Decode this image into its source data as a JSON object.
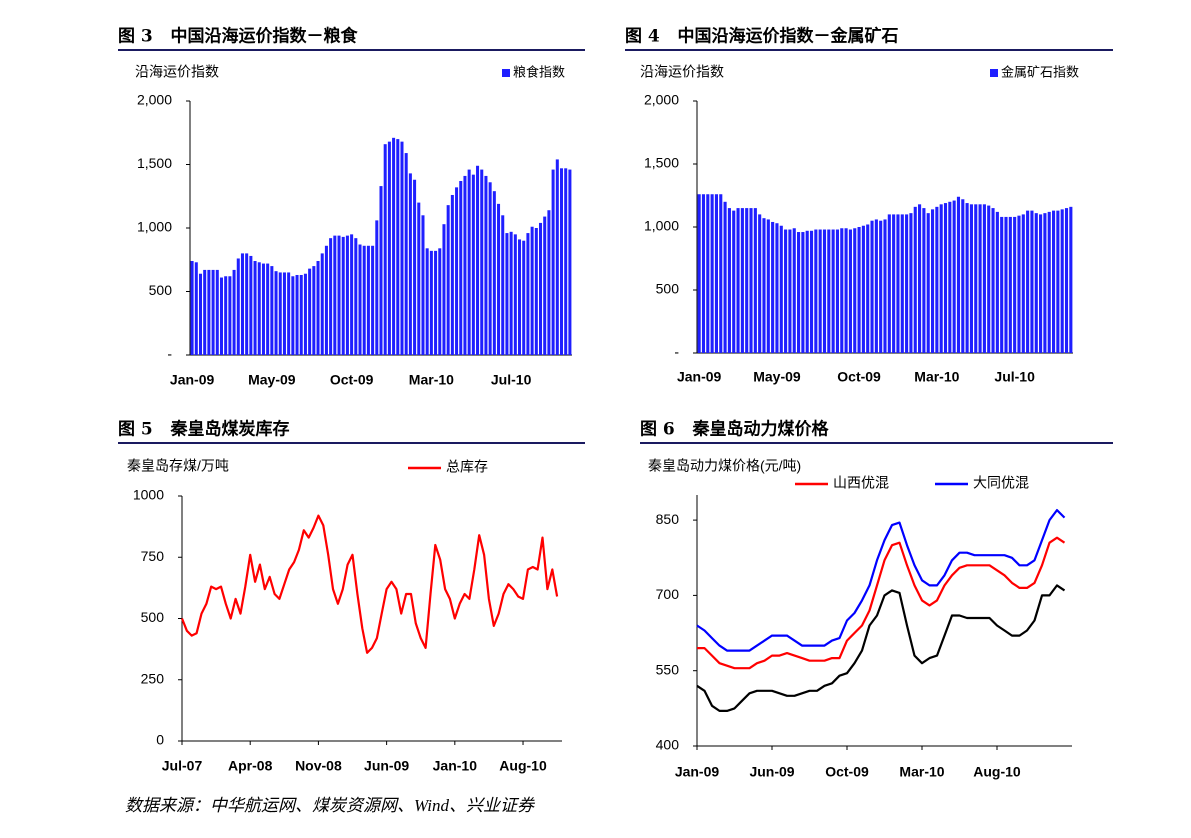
{
  "chart_data": [
    {
      "type": "bar",
      "title": "图 3   中国沿海运价指数－粮食",
      "y_label": "沿海运价指数",
      "categories": [
        "Jan-09",
        null,
        null,
        null,
        null,
        null,
        null,
        null,
        null,
        null,
        null,
        null,
        null,
        null,
        null,
        null,
        null,
        null,
        null,
        "May-09",
        null,
        null,
        null,
        null,
        null,
        null,
        null,
        null,
        null,
        null,
        null,
        null,
        null,
        null,
        null,
        null,
        null,
        null,
        "Oct-09",
        null,
        null,
        null,
        null,
        null,
        null,
        null,
        null,
        null,
        null,
        null,
        null,
        null,
        null,
        null,
        null,
        null,
        null,
        "Mar-10",
        null,
        null,
        null,
        null,
        null,
        null,
        null,
        null,
        null,
        null,
        null,
        null,
        null,
        null,
        null,
        null,
        null,
        null,
        "Jul-10",
        null,
        null,
        null,
        null,
        null,
        null,
        null,
        null,
        null,
        null,
        null,
        null,
        null,
        null
      ],
      "series": [
        {
          "name": "粮食指数",
          "color": "#1f1fff",
          "values": [
            740,
            730,
            640,
            670,
            670,
            670,
            670,
            610,
            620,
            620,
            670,
            760,
            800,
            800,
            780,
            740,
            730,
            720,
            720,
            700,
            660,
            650,
            650,
            650,
            620,
            630,
            630,
            640,
            680,
            700,
            740,
            800,
            860,
            920,
            940,
            940,
            930,
            940,
            950,
            920,
            870,
            860,
            860,
            860,
            1060,
            1330,
            1660,
            1680,
            1710,
            1700,
            1680,
            1590,
            1430,
            1380,
            1200,
            1100,
            840,
            820,
            820,
            840,
            1030,
            1180,
            1260,
            1320,
            1370,
            1410,
            1460,
            1420,
            1490,
            1460,
            1410,
            1360,
            1290,
            1190,
            1100,
            960,
            970,
            950,
            910,
            900,
            960,
            1010,
            1000,
            1040,
            1090,
            1140,
            1460,
            1540,
            1470,
            1470,
            1460
          ]
        }
      ],
      "ylim": [
        0,
        2000
      ],
      "yticks": [
        {
          "value": 0,
          "label": "-"
        },
        500,
        {
          "value": 1000,
          "label": "1,000"
        },
        {
          "value": 1500,
          "label": "1,500"
        },
        {
          "value": 2000,
          "label": "2,000"
        }
      ],
      "legend": "top-right"
    },
    {
      "type": "bar",
      "title": "图 4   中国沿海运价指数－金属矿石",
      "y_label": "沿海运价指数",
      "categories": [
        "Jan-09",
        null,
        null,
        null,
        null,
        null,
        null,
        null,
        null,
        null,
        null,
        null,
        null,
        null,
        null,
        null,
        null,
        null,
        "May-09",
        null,
        null,
        null,
        null,
        null,
        null,
        null,
        null,
        null,
        null,
        null,
        null,
        null,
        null,
        null,
        null,
        null,
        null,
        "Oct-09",
        null,
        null,
        null,
        null,
        null,
        null,
        null,
        null,
        null,
        null,
        null,
        null,
        null,
        null,
        null,
        null,
        null,
        "Mar-10",
        null,
        null,
        null,
        null,
        null,
        null,
        null,
        null,
        null,
        null,
        null,
        null,
        null,
        null,
        null,
        null,
        null,
        "Jul-10",
        null,
        null,
        null,
        null,
        null,
        null,
        null,
        null,
        null,
        null,
        null,
        null,
        null
      ],
      "series": [
        {
          "name": "金属矿石指数",
          "color": "#1f1fff",
          "values": [
            1260,
            1260,
            1260,
            1260,
            1260,
            1260,
            1200,
            1150,
            1130,
            1150,
            1150,
            1150,
            1150,
            1150,
            1100,
            1070,
            1060,
            1040,
            1030,
            1010,
            980,
            980,
            990,
            960,
            960,
            970,
            970,
            980,
            980,
            980,
            980,
            980,
            980,
            990,
            990,
            980,
            990,
            1000,
            1010,
            1020,
            1050,
            1060,
            1050,
            1060,
            1100,
            1100,
            1100,
            1100,
            1100,
            1110,
            1160,
            1180,
            1150,
            1110,
            1140,
            1160,
            1180,
            1190,
            1200,
            1210,
            1240,
            1220,
            1190,
            1180,
            1180,
            1180,
            1180,
            1170,
            1150,
            1120,
            1080,
            1080,
            1080,
            1080,
            1090,
            1100,
            1130,
            1130,
            1110,
            1100,
            1110,
            1120,
            1130,
            1130,
            1140,
            1150,
            1160
          ]
        }
      ],
      "ylim": [
        0,
        2000
      ],
      "yticks": [
        {
          "value": 0,
          "label": "-"
        },
        500,
        {
          "value": 1000,
          "label": "1,000"
        },
        {
          "value": 1500,
          "label": "1,500"
        },
        {
          "value": 2000,
          "label": "2,000"
        }
      ],
      "legend": "top-right"
    },
    {
      "type": "line",
      "title": "图 5   秦皇岛煤炭库存",
      "y_label": "秦皇岛存煤/万吨",
      "categories": [
        "Jul-07",
        null,
        null,
        null,
        null,
        null,
        null,
        null,
        null,
        null,
        null,
        null,
        null,
        null,
        "Apr-08",
        null,
        null,
        null,
        null,
        null,
        null,
        null,
        null,
        null,
        null,
        null,
        null,
        null,
        "Nov-08",
        null,
        null,
        null,
        null,
        null,
        null,
        null,
        null,
        null,
        null,
        null,
        null,
        null,
        "Jun-09",
        null,
        null,
        null,
        null,
        null,
        null,
        null,
        null,
        null,
        null,
        null,
        null,
        null,
        "Jan-10",
        null,
        null,
        null,
        null,
        null,
        null,
        null,
        null,
        null,
        null,
        null,
        null,
        null,
        "Aug-10",
        null,
        null,
        null,
        null,
        null,
        null,
        null
      ],
      "series": [
        {
          "name": "总库存",
          "color": "#ff0000",
          "values": [
            500,
            450,
            430,
            440,
            520,
            560,
            630,
            620,
            630,
            560,
            500,
            580,
            520,
            630,
            760,
            650,
            720,
            620,
            670,
            600,
            580,
            640,
            700,
            730,
            780,
            860,
            830,
            870,
            920,
            880,
            760,
            620,
            560,
            620,
            720,
            760,
            600,
            460,
            360,
            380,
            420,
            520,
            620,
            650,
            620,
            520,
            600,
            600,
            480,
            420,
            380,
            600,
            800,
            740,
            620,
            580,
            500,
            560,
            600,
            580,
            700,
            840,
            760,
            580,
            470,
            520,
            600,
            640,
            620,
            590,
            580,
            700,
            710,
            700,
            830,
            620,
            700,
            590
          ]
        }
      ],
      "ylim": [
        0,
        1000
      ],
      "yticks": [
        0,
        250,
        500,
        750,
        1000
      ],
      "legend": "top"
    },
    {
      "type": "line",
      "title": "图 6   秦皇岛动力煤价格",
      "y_label": "秦皇岛动力煤价格(元/吨)",
      "categories": [
        "Jan-09",
        null,
        null,
        null,
        null,
        null,
        null,
        null,
        null,
        null,
        "Jun-09",
        null,
        null,
        null,
        null,
        null,
        null,
        null,
        null,
        null,
        "Oct-09",
        null,
        null,
        null,
        null,
        null,
        null,
        null,
        null,
        null,
        "Mar-10",
        null,
        null,
        null,
        null,
        null,
        null,
        null,
        null,
        null,
        "Aug-10",
        null,
        null,
        null,
        null,
        null,
        null,
        null,
        null,
        null
      ],
      "series": [
        {
          "name": "山西优混",
          "color": "#ff0000",
          "values": [
            595,
            595,
            580,
            565,
            560,
            555,
            555,
            555,
            565,
            570,
            580,
            580,
            585,
            580,
            575,
            570,
            570,
            570,
            575,
            575,
            610,
            625,
            640,
            670,
            720,
            770,
            800,
            805,
            760,
            720,
            690,
            680,
            690,
            720,
            740,
            755,
            760,
            760,
            760,
            760,
            750,
            740,
            725,
            715,
            715,
            725,
            760,
            805,
            815,
            805
          ]
        },
        {
          "name": "大同优混",
          "color": "#0000ff",
          "values": [
            640,
            630,
            615,
            600,
            590,
            590,
            590,
            590,
            600,
            610,
            620,
            620,
            620,
            610,
            600,
            600,
            600,
            600,
            610,
            615,
            650,
            665,
            690,
            720,
            770,
            810,
            840,
            845,
            800,
            760,
            730,
            720,
            720,
            740,
            770,
            785,
            785,
            780,
            780,
            780,
            780,
            780,
            775,
            760,
            760,
            770,
            810,
            850,
            870,
            855
          ]
        },
        {
          "color": "#000000",
          "values": [
            520,
            510,
            480,
            470,
            470,
            475,
            490,
            505,
            510,
            510,
            510,
            505,
            500,
            500,
            505,
            510,
            510,
            520,
            525,
            540,
            545,
            565,
            590,
            640,
            660,
            700,
            710,
            705,
            640,
            580,
            565,
            575,
            580,
            620,
            660,
            660,
            655,
            655,
            655,
            655,
            640,
            630,
            620,
            620,
            630,
            650,
            700,
            700,
            720,
            710
          ]
        }
      ],
      "ylim": [
        400,
        900
      ],
      "yticks": [
        400,
        550,
        700,
        850
      ],
      "legend": "top"
    }
  ],
  "source": "数据来源：中华航运网、煤炭资源网、Wind、兴业证券"
}
